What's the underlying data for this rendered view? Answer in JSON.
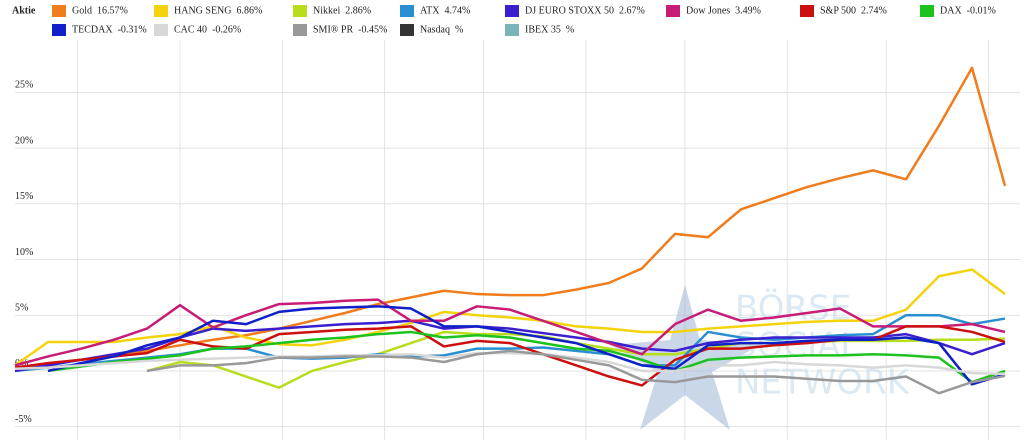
{
  "chart_data": {
    "type": "line",
    "legend_title": "Aktie",
    "watermark": [
      "BÖRSE",
      "SOCIAL",
      "NETWORK"
    ],
    "x": [
      0,
      1,
      2,
      3,
      4,
      5,
      6,
      7,
      8,
      9,
      10,
      11,
      12,
      13,
      14,
      15,
      16,
      17,
      18,
      19,
      20,
      21,
      22,
      23,
      24,
      25,
      26,
      27,
      28,
      29,
      30
    ],
    "xlim": [
      0,
      30
    ],
    "xticks": [
      1.9,
      5,
      8.1,
      11.2,
      14.2,
      17.3,
      20.3,
      23.4,
      26.4,
      29.5
    ],
    "ylim": [
      -5.3,
      29.7
    ],
    "yticks": [
      {
        "value": -5,
        "label": "-5%"
      },
      {
        "value": 0,
        "label": "0%"
      },
      {
        "value": 5,
        "label": "5%"
      },
      {
        "value": 10,
        "label": "10%"
      },
      {
        "value": 15,
        "label": "15%"
      },
      {
        "value": 20,
        "label": "20%"
      },
      {
        "value": 25,
        "label": "25%"
      }
    ],
    "grid": true,
    "series": [
      {
        "name": "Gold",
        "change": "16.57%",
        "color": "#f07c1c",
        "values": [
          0.3,
          0.6,
          1,
          1.4,
          1.8,
          2.3,
          2.8,
          3.2,
          3.8,
          4.5,
          5.2,
          6,
          6.6,
          7.2,
          6.9,
          6.8,
          6.8,
          7.3,
          7.9,
          9.2,
          12.3,
          12,
          14.5,
          15.5,
          16.5,
          17.3,
          18,
          17.2,
          22,
          27.2,
          16.6
        ]
      },
      {
        "name": "HANG SENG",
        "change": "6.86%",
        "color": "#f5d30c",
        "values": [
          0.5,
          2.6,
          2.6,
          2.6,
          3,
          3.3,
          4,
          3,
          2.4,
          2.3,
          2.8,
          3.5,
          4.3,
          5.3,
          5,
          4.8,
          4.5,
          4,
          3.8,
          3.5,
          3.5,
          3.8,
          4,
          4.2,
          4.4,
          4.5,
          4.5,
          5.5,
          8.5,
          9.1,
          6.9
        ]
      },
      {
        "name": "Nikkei",
        "change": "2.86%",
        "color": "#b7dd1c",
        "values": [
          null,
          null,
          null,
          null,
          0,
          0.8,
          0.5,
          -0.5,
          -1.5,
          0,
          0.8,
          1.5,
          2.5,
          3.5,
          3.3,
          3.3,
          3.1,
          2.5,
          2,
          1.5,
          1.5,
          2,
          2.5,
          2.5,
          2.6,
          2.7,
          2.7,
          2.7,
          2.8,
          2.8,
          2.9
        ]
      },
      {
        "name": "ATX",
        "change": "4.74%",
        "color": "#2a8fd0",
        "values": [
          0,
          0.3,
          0.6,
          0.9,
          1.2,
          1.5,
          2,
          2,
          1.2,
          1.1,
          1.2,
          1.5,
          1.3,
          1.4,
          2,
          2,
          2.1,
          1.8,
          1.5,
          0.5,
          0.5,
          3.5,
          3,
          2.8,
          3,
          3.2,
          3.3,
          5,
          5,
          4.2,
          4.7
        ]
      },
      {
        "name": "DJ EURO STOXX 50",
        "change": "2.67%",
        "color": "#3a1fcf",
        "values": [
          0,
          0.5,
          1,
          1.5,
          2,
          3,
          3.8,
          3.6,
          3.8,
          4,
          4.2,
          4.3,
          4.5,
          3.8,
          4,
          3.8,
          3.4,
          3,
          2.6,
          2,
          1.8,
          2.5,
          2.8,
          3,
          3,
          3,
          3,
          3.3,
          2.5,
          1.5,
          2.5
        ]
      },
      {
        "name": "Dow Jones",
        "change": "3.49%",
        "color": "#c81d76",
        "values": [
          0.5,
          1.3,
          2,
          2.8,
          3.8,
          5.9,
          3.9,
          5,
          6,
          6.1,
          6.3,
          6.4,
          4.5,
          4.5,
          5.8,
          5.5,
          4.5,
          3.5,
          2.5,
          1.5,
          4.2,
          5.5,
          4.5,
          4.8,
          5.2,
          5.6,
          4,
          4,
          4,
          4.2,
          3.5
        ]
      },
      {
        "name": "S&P 500",
        "change": "2.74%",
        "color": "#cc1010",
        "values": [
          0.3,
          0.7,
          1,
          1.3,
          1.6,
          2.8,
          2.2,
          2,
          3.3,
          3.5,
          3.7,
          3.8,
          4,
          2.2,
          2.7,
          2.5,
          1.5,
          0.5,
          -0.5,
          -1.3,
          1,
          2,
          2,
          2.3,
          2.5,
          2.8,
          2.8,
          4,
          4,
          3.5,
          2.6
        ]
      },
      {
        "name": "DAX",
        "change": "-0.01%",
        "color": "#1ec21e",
        "values": [
          null,
          0,
          0.4,
          0.8,
          1.1,
          1.4,
          2,
          2.2,
          2.5,
          2.8,
          3,
          3.3,
          3.5,
          3,
          3.2,
          3,
          2.5,
          2,
          1.8,
          1,
          0,
          1,
          1.2,
          1.3,
          1.4,
          1.4,
          1.5,
          1.4,
          1.2,
          -1,
          0
        ]
      },
      {
        "name": "TECDAX",
        "change": "-0.31%",
        "color": "#1020c8",
        "values": [
          null,
          0,
          0.7,
          1.3,
          2.3,
          3,
          4.5,
          4.2,
          5.3,
          5.6,
          5.7,
          5.8,
          5.6,
          4,
          4,
          3.5,
          3,
          2.5,
          1.5,
          0.5,
          0.2,
          2.3,
          2.5,
          2.5,
          2.7,
          2.8,
          2.8,
          3,
          2.5,
          -1.2,
          -0.3
        ]
      },
      {
        "name": "CAC 40",
        "change": "-0.26%",
        "color": "#d8d8d8",
        "values": [
          0.2,
          0.3,
          0.5,
          0.7,
          0.9,
          1,
          1.1,
          1.2,
          1.3,
          1.3,
          1.4,
          1.4,
          1.5,
          1.2,
          1.6,
          1.6,
          1.5,
          1.2,
          0.8,
          0,
          0,
          0.5,
          0.5,
          0.8,
          0.6,
          0.5,
          0.3,
          0.5,
          0.3,
          -0.2,
          -0.26
        ]
      },
      {
        "name": "SMI® PR",
        "change": "-0.45%",
        "color": "#999999",
        "values": [
          null,
          null,
          null,
          null,
          0,
          0.5,
          0.5,
          0.7,
          1.2,
          1.2,
          1.3,
          1.3,
          1.2,
          0.8,
          1.5,
          1.8,
          1.5,
          1,
          0.5,
          -0.8,
          -1,
          -0.5,
          -0.5,
          -0.5,
          -0.7,
          -0.9,
          -0.9,
          -0.5,
          -2,
          -1,
          -0.45
        ]
      },
      {
        "name": "Nasdaq",
        "change": "%",
        "color": "#333333",
        "values": [
          null,
          null,
          null,
          null,
          null,
          null,
          null,
          null,
          null,
          null,
          null,
          null,
          null,
          null,
          null,
          null,
          null,
          null,
          null,
          null,
          null,
          null,
          null,
          null,
          null,
          null,
          null,
          null,
          null,
          null,
          null
        ]
      },
      {
        "name": "IBEX 35",
        "change": "%",
        "color": "#7ab3b8",
        "values": [
          null,
          null,
          null,
          null,
          null,
          null,
          null,
          null,
          null,
          null,
          null,
          null,
          null,
          null,
          null,
          null,
          null,
          null,
          null,
          null,
          null,
          null,
          null,
          null,
          null,
          null,
          null,
          null,
          null,
          null,
          null
        ]
      }
    ]
  }
}
